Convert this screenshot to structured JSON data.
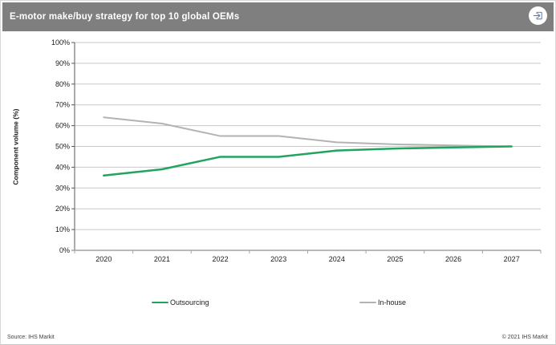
{
  "header": {
    "title": "E-motor make/buy strategy for top 10 global OEMs"
  },
  "colors": {
    "header_bg": "#7f7f7f",
    "header_text": "#ffffff",
    "outsourcing_green": "#21a45d",
    "inhouse_gray": "#b3b3b3",
    "gridline": "#c9c9c9",
    "x_axis": "#a3a3a3",
    "y_axis": "#595959",
    "export_icon_blue": "#4472c4"
  },
  "chart_data": {
    "type": "line",
    "title": "E-motor make/buy strategy for top 10 global OEMs",
    "categories": [
      "2020",
      "2021",
      "2022",
      "2023",
      "2024",
      "2025",
      "2026",
      "2027"
    ],
    "series": [
      {
        "name": "Outsourcing",
        "color": "#21a45d",
        "width": 2.5,
        "values": [
          36,
          39,
          45,
          45,
          48,
          49,
          49.5,
          50
        ]
      },
      {
        "name": "In-house",
        "color": "#b3b3b3",
        "width": 2,
        "values": [
          64,
          61,
          55,
          55,
          52,
          51,
          50.5,
          50
        ]
      }
    ],
    "xlabel": "",
    "ylabel": "Component volume (%)",
    "ylim": [
      0,
      100
    ],
    "ytick_step": 10,
    "ytick_format": "percent",
    "grid": true,
    "legend_position": "bottom"
  },
  "footer": {
    "source": "Source: IHS Markit",
    "copyright": "© 2021 IHS Markit"
  }
}
